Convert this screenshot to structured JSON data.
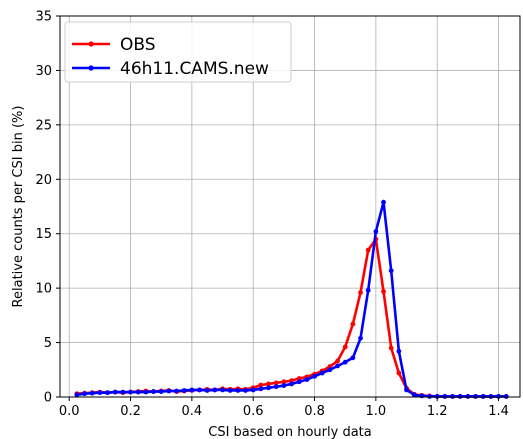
{
  "chart_data": {
    "type": "line",
    "title": "",
    "xlabel": "CSI based on hourly data",
    "ylabel": "Relative counts per CSI bin (%)",
    "xlim": [
      -0.03,
      1.47
    ],
    "ylim": [
      0,
      35
    ],
    "xticks": [
      0.0,
      0.2,
      0.4,
      0.6,
      0.8,
      1.0,
      1.2,
      1.4
    ],
    "xtick_labels": [
      "0.0",
      "0.2",
      "0.4",
      "0.6",
      "0.8",
      "1.0",
      "1.2",
      "1.4"
    ],
    "yticks": [
      0,
      5,
      10,
      15,
      20,
      25,
      30,
      35
    ],
    "ytick_labels": [
      "0",
      "5",
      "10",
      "15",
      "20",
      "25",
      "30",
      "35"
    ],
    "grid": true,
    "legend_position": "top-left",
    "x": [
      0.025,
      0.05,
      0.075,
      0.1,
      0.125,
      0.15,
      0.175,
      0.2,
      0.225,
      0.25,
      0.275,
      0.3,
      0.325,
      0.35,
      0.375,
      0.4,
      0.425,
      0.45,
      0.475,
      0.5,
      0.525,
      0.55,
      0.575,
      0.6,
      0.625,
      0.65,
      0.675,
      0.7,
      0.725,
      0.75,
      0.775,
      0.8,
      0.825,
      0.85,
      0.875,
      0.9,
      0.925,
      0.95,
      0.975,
      1.0,
      1.025,
      1.05,
      1.075,
      1.1,
      1.125,
      1.15,
      1.175,
      1.2,
      1.225,
      1.25,
      1.275,
      1.3,
      1.325,
      1.35,
      1.375,
      1.4,
      1.425
    ],
    "series": [
      {
        "name": "OBS",
        "color": "#ff0000",
        "values": [
          0.3,
          0.35,
          0.4,
          0.45,
          0.4,
          0.45,
          0.4,
          0.45,
          0.5,
          0.55,
          0.5,
          0.55,
          0.6,
          0.5,
          0.55,
          0.6,
          0.65,
          0.7,
          0.65,
          0.75,
          0.7,
          0.75,
          0.7,
          0.85,
          1.1,
          1.2,
          1.3,
          1.4,
          1.5,
          1.7,
          1.85,
          2.1,
          2.4,
          2.8,
          3.3,
          4.6,
          6.7,
          9.6,
          13.5,
          14.5,
          9.7,
          4.5,
          2.2,
          0.8,
          0.25,
          0.15,
          0.1,
          0.05,
          0.05,
          0.05,
          0.05,
          0.05,
          0.05,
          0.05,
          0.05,
          0.05,
          0.05
        ]
      },
      {
        "name": "46h11.CAMS.new",
        "color": "#0000ff",
        "values": [
          0.2,
          0.3,
          0.35,
          0.4,
          0.4,
          0.45,
          0.45,
          0.45,
          0.45,
          0.45,
          0.5,
          0.5,
          0.55,
          0.55,
          0.6,
          0.65,
          0.65,
          0.6,
          0.65,
          0.65,
          0.6,
          0.6,
          0.6,
          0.65,
          0.75,
          0.85,
          0.95,
          1.05,
          1.2,
          1.4,
          1.6,
          1.9,
          2.2,
          2.5,
          2.85,
          3.2,
          3.6,
          5.4,
          9.8,
          15.2,
          17.9,
          11.6,
          4.2,
          0.65,
          0.2,
          0.1,
          0.05,
          0.05,
          0.05,
          0.05,
          0.05,
          0.05,
          0.05,
          0.05,
          0.05,
          0.05,
          0.05
        ]
      }
    ]
  }
}
